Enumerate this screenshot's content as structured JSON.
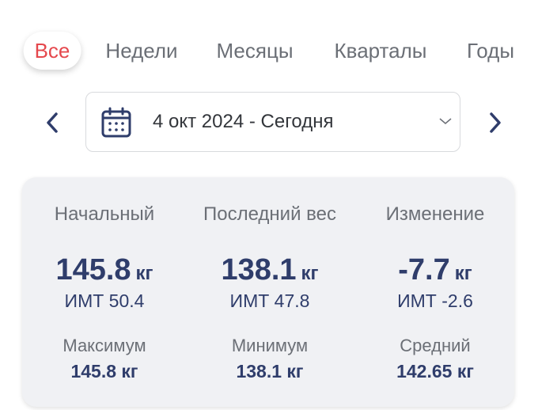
{
  "tabs": [
    {
      "label": "Все",
      "active": true
    },
    {
      "label": "Недели"
    },
    {
      "label": "Месяцы"
    },
    {
      "label": "Кварталы"
    },
    {
      "label": "Годы"
    }
  ],
  "date_range": {
    "label": "4 окт 2024 - Сегодня",
    "icon": "calendar-icon"
  },
  "colors": {
    "accent": "#e5484d",
    "primary": "#2f3d6b"
  },
  "stats": [
    {
      "label": "Начальный",
      "value": "145.8",
      "unit": "кг",
      "bmi": "ИМТ 50.4"
    },
    {
      "label": "Последний вес",
      "value": "138.1",
      "unit": "кг",
      "bmi": "ИМТ 47.8"
    },
    {
      "label": "Изменение",
      "value": "-7.7",
      "unit": "кг",
      "bmi": "ИМТ -2.6"
    }
  ],
  "summary": [
    {
      "label": "Максимум",
      "value": "145.8 кг"
    },
    {
      "label": "Минимум",
      "value": "138.1 кг"
    },
    {
      "label": "Средний",
      "value": "142.65 кг"
    }
  ]
}
